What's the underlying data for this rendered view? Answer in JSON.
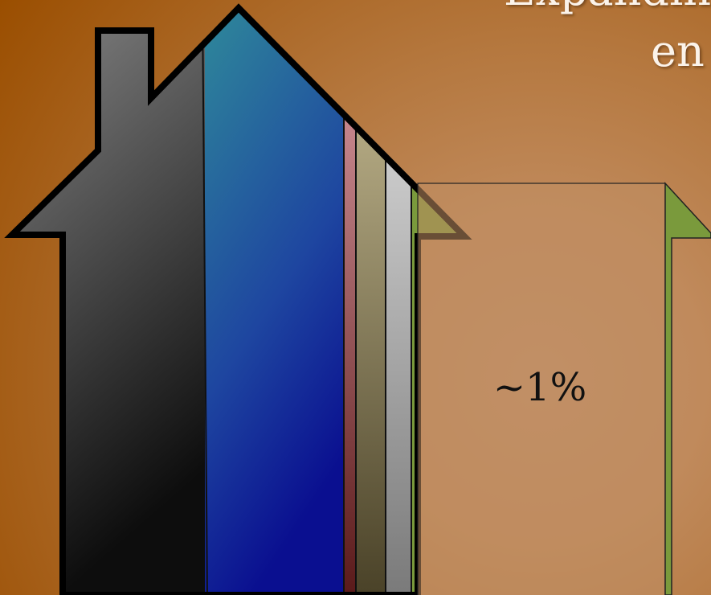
{
  "title_lines": [
    "Expandin",
    "en"
  ],
  "callout": {
    "label": "~1%"
  }
}
